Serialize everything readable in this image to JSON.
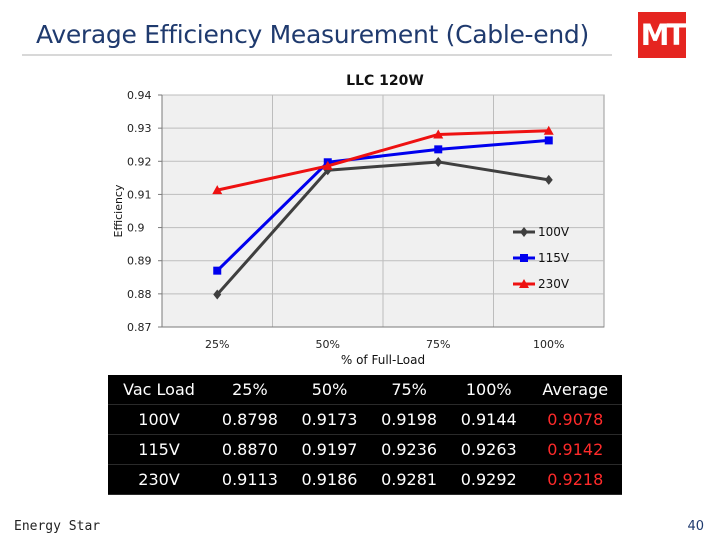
{
  "slide": {
    "title": "Average Efficiency Measurement (Cable-end)",
    "logo_text": "MT",
    "footer_label": "Energy Star",
    "page_number": "40"
  },
  "colors": {
    "series_100v": "#3f3f3f",
    "series_115v": "#0000ee",
    "series_230v": "#ee1111",
    "plot_bg": "#f0f0f0",
    "grid": "#bdbdbd",
    "table_bg": "#000000",
    "average_text": "#ff2a2a",
    "logo": "#e52520"
  },
  "chart_data": {
    "type": "line",
    "title": "LLC 120W",
    "xlabel": "% of Full-Load",
    "ylabel": "Efficiency",
    "categories": [
      "25%",
      "50%",
      "75%",
      "100%"
    ],
    "y_ticks": [
      "0.87",
      "0.88",
      "0.89",
      "0.9",
      "0.91",
      "0.92",
      "0.93",
      "0.94"
    ],
    "ylim": [
      0.87,
      0.94
    ],
    "grid": true,
    "legend_position": "bottom-right inside plot",
    "series": [
      {
        "name": "100V",
        "values": [
          0.8798,
          0.9173,
          0.9198,
          0.9144
        ]
      },
      {
        "name": "115V",
        "values": [
          0.887,
          0.9197,
          0.9236,
          0.9263
        ]
      },
      {
        "name": "230V",
        "values": [
          0.9113,
          0.9186,
          0.9281,
          0.9292
        ]
      }
    ]
  },
  "table": {
    "headers": [
      "Vac Load",
      "25%",
      "50%",
      "75%",
      "100%",
      "Average"
    ],
    "rows": [
      [
        "100V",
        "0.8798",
        "0.9173",
        "0.9198",
        "0.9144",
        "0.9078"
      ],
      [
        "115V",
        "0.8870",
        "0.9197",
        "0.9236",
        "0.9263",
        "0.9142"
      ],
      [
        "230V",
        "0.9113",
        "0.9186",
        "0.9281",
        "0.9292",
        "0.9218"
      ]
    ]
  }
}
